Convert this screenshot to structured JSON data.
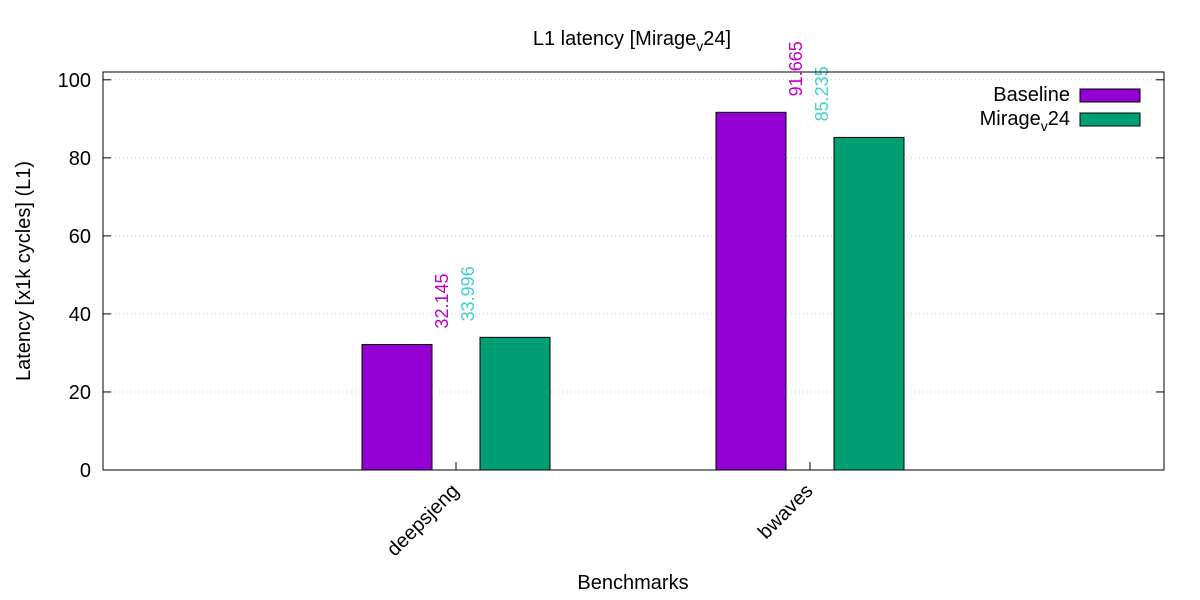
{
  "chart_data": {
    "type": "bar",
    "title": "L1 latency [Mirage",
    "title_sub": "v",
    "title_tail": "24]",
    "xlabel": "Benchmarks",
    "ylabel": "Latency [x1k cycles] (L1)",
    "ylim": [
      0,
      102
    ],
    "yticks": [
      0,
      20,
      40,
      60,
      80,
      100
    ],
    "grid": true,
    "legend_position": "top-right",
    "categories": [
      "deepsjeng",
      "bwaves"
    ],
    "series": [
      {
        "name": "Baseline",
        "name_sub": "",
        "name_tail": "",
        "color": "#9400d3",
        "label_color": "#c000c0",
        "values": [
          32.145,
          91.665
        ],
        "labels": [
          "32.145",
          "91.665"
        ]
      },
      {
        "name": "Mirage",
        "name_sub": "v",
        "name_tail": "24",
        "color": "#009e73",
        "label_color": "#40d0c8",
        "values": [
          33.996,
          85.235
        ],
        "labels": [
          "33.996",
          "85.235"
        ]
      }
    ]
  }
}
